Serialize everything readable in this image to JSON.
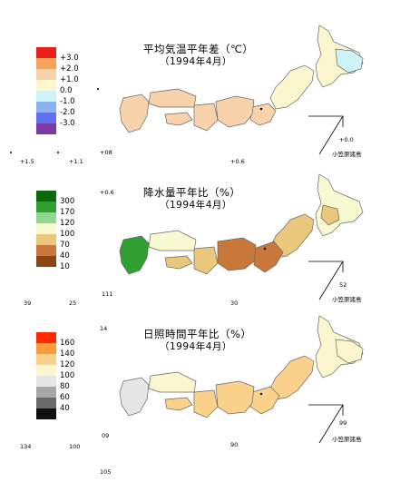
{
  "panels": [
    {
      "title": "平均気温平年差（℃）",
      "subtitle": "（1994年4月）",
      "legend": [
        {
          "label": "+3.0",
          "color": "#e8201a"
        },
        {
          "label": "+2.0",
          "color": "#f5a25a"
        },
        {
          "label": "+1.0",
          "color": "#f8d2aa"
        },
        {
          "label": "0.0",
          "color": "#fcf6cf"
        },
        {
          "label": "-1.0",
          "color": "#cef3f6"
        },
        {
          "label": "-2.0",
          "color": "#8ab4f0"
        },
        {
          "label": "-3.0",
          "color": "#6070ee"
        },
        {
          "label": "",
          "color": "#7a3aa6"
        }
      ],
      "values": {
        "minamidaito": "+08",
        "tokyo": "+0.6",
        "izu": "+0.6",
        "ogasawara": "+0.0",
        "yonaguni": "+1.5",
        "naha": "+1.1"
      },
      "ogasawara_label": "小笠原諸島"
    },
    {
      "title": "降水量平年比（%）",
      "subtitle": "（1994年4月）",
      "legend": [
        {
          "label": "300",
          "color": "#0a6a0a"
        },
        {
          "label": "170",
          "color": "#2fa02f"
        },
        {
          "label": "120",
          "color": "#8fd88f"
        },
        {
          "label": "100",
          "color": "#fafad2"
        },
        {
          "label": "70",
          "color": "#e9c77b"
        },
        {
          "label": "40",
          "color": "#c9773a"
        },
        {
          "label": "10",
          "color": "#8b4513"
        }
      ],
      "values": {
        "minamidaito": "111",
        "tokyo": "30",
        "izu": "105",
        "ogasawara": "52",
        "yonaguni": "39",
        "naha": "25"
      },
      "ogasawara_label": "小笠原諸島"
    },
    {
      "title": "日照時間平年比（%）",
      "subtitle": "（1994年4月）",
      "legend": [
        {
          "label": "160",
          "color": "#ff2a00"
        },
        {
          "label": "140",
          "color": "#ff9a3a"
        },
        {
          "label": "120",
          "color": "#fbd28c"
        },
        {
          "label": "100",
          "color": "#fcf6cf"
        },
        {
          "label": "80",
          "color": "#e6e6e6"
        },
        {
          "label": "60",
          "color": "#a8a8a8"
        },
        {
          "label": "40",
          "color": "#6a6a6a"
        },
        {
          "label": "",
          "color": "#101010"
        }
      ],
      "values": {
        "minamidaito": "09",
        "tokyo": "90",
        "izu": "14",
        "ogasawara": "99",
        "yonaguni": "134",
        "naha": "100"
      },
      "extra_value": "105",
      "ogasawara_label": "小笠原諸島"
    }
  ],
  "region_colors": [
    {
      "hokkaido": "#fcf6cf",
      "hokkaido_east": "#cef3f6",
      "tohoku": "#fcf6cf",
      "kanto": "#f8d2aa",
      "chubu": "#f8d2aa",
      "kinki": "#f8d2aa",
      "chugoku": "#f8d2aa",
      "shikoku": "#f8d2aa",
      "kyushu": "#f8d2aa"
    },
    {
      "hokkaido": "#fafad2",
      "hokkaido_east": "#e9c77b",
      "tohoku": "#e9c77b",
      "kanto": "#c9773a",
      "chubu": "#c9773a",
      "kinki": "#e9c77b",
      "chugoku": "#fafad2",
      "shikoku": "#e9c77b",
      "kyushu": "#2fa02f"
    },
    {
      "hokkaido": "#fcf6cf",
      "hokkaido_east": "#fcf6cf",
      "tohoku": "#fbd28c",
      "kanto": "#fbd28c",
      "chubu": "#fbd28c",
      "kinki": "#fbd28c",
      "chugoku": "#fcf6cf",
      "shikoku": "#fbd28c",
      "kyushu": "#e6e6e6"
    }
  ]
}
